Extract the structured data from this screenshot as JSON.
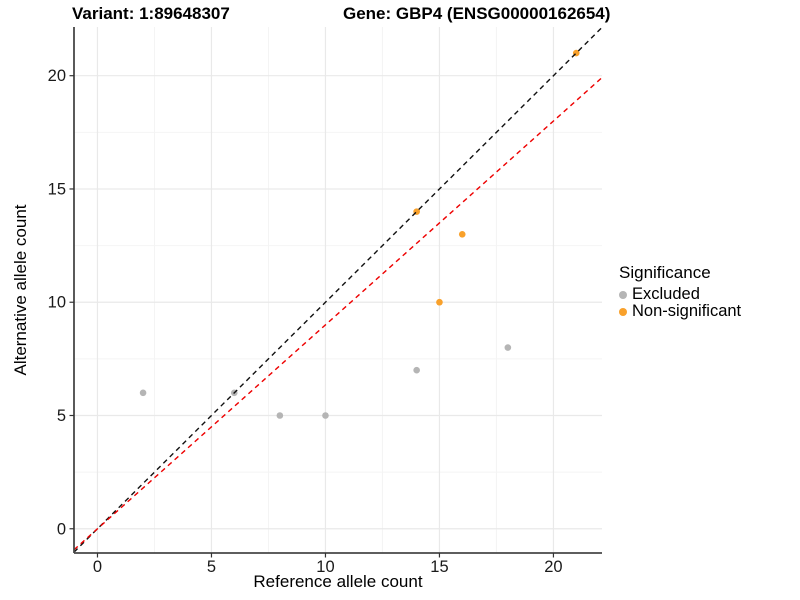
{
  "titles": {
    "variant": "Variant: 1:89648307",
    "gene": "Gene: GBP4 (ENSG00000162654)"
  },
  "chart_data": {
    "type": "scatter",
    "xlabel": "Reference allele count",
    "ylabel": "Alternative allele count",
    "xlim": [
      -1.03,
      22.13
    ],
    "ylim": [
      -1.07,
      22.15
    ],
    "xticks": [
      0,
      5,
      10,
      15,
      20
    ],
    "yticks": [
      0,
      5,
      10,
      15,
      20
    ],
    "grid": "major_and_minor",
    "series": [
      {
        "name": "Excluded",
        "color": "#b5b5b5",
        "points": [
          [
            2,
            6
          ],
          [
            6,
            6
          ],
          [
            8,
            5
          ],
          [
            10,
            5
          ],
          [
            14,
            7
          ],
          [
            18,
            8
          ]
        ]
      },
      {
        "name": "Non-significant",
        "color": "#f9a12b",
        "points": [
          [
            14,
            14
          ],
          [
            15,
            10
          ],
          [
            16,
            13
          ],
          [
            21,
            21
          ]
        ]
      }
    ],
    "lines": [
      {
        "name": "identity-line",
        "slope": 1.0,
        "intercept": 0,
        "color": "#111111",
        "style": "dashed"
      },
      {
        "name": "expected-ratio-line",
        "slope": 0.9,
        "intercept": 0,
        "color": "#ee0000",
        "style": "dashed"
      }
    ],
    "legend": {
      "title": "Significance",
      "position": "right"
    },
    "colors": {
      "major_grid": "#e9e9e9",
      "minor_grid": "#f4f4f4",
      "axis_line": "#474747",
      "tick_mark": "#333333",
      "tick_label": "#1a1a1a"
    }
  }
}
